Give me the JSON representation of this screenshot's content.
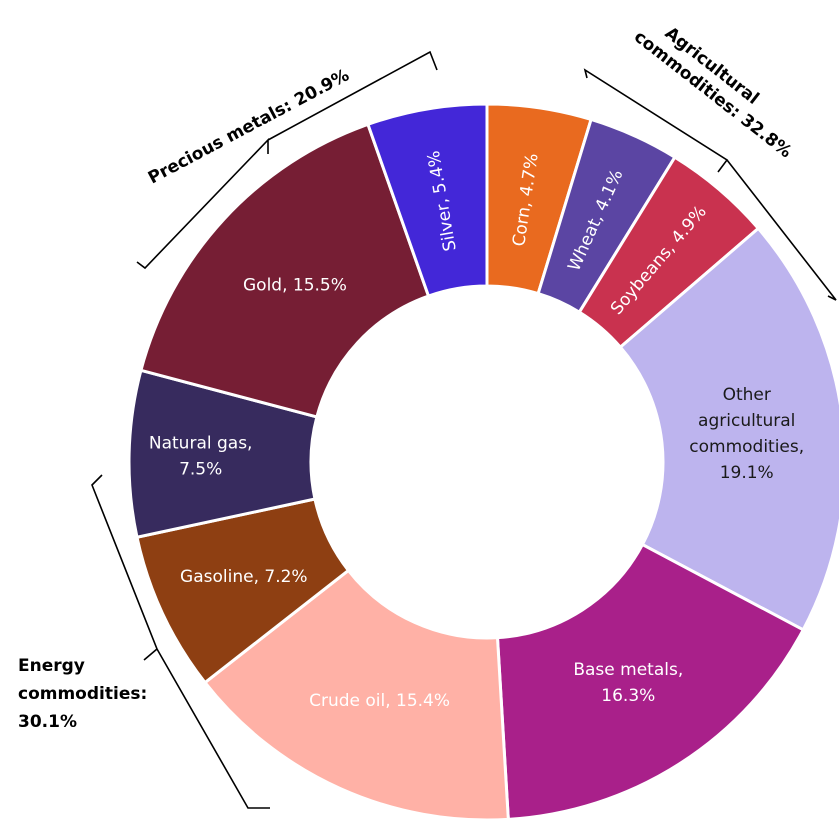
{
  "chart_data": {
    "type": "pie",
    "variant": "donut",
    "slices": [
      {
        "label": "Corn, 4.7%",
        "category": "Corn",
        "value": 4.7,
        "color": "#E96A1F"
      },
      {
        "label": "Wheat, 4.1%",
        "category": "Wheat",
        "value": 4.1,
        "color": "#5B45A3"
      },
      {
        "label": "Soybeans, 4.9%",
        "category": "Soybeans",
        "value": 4.9,
        "color": "#C9324F"
      },
      {
        "label": "Other agricultural commodities, 19.1%",
        "lines": [
          "Other",
          "agricultural",
          "commodities,",
          "19.1%"
        ],
        "category": "Other agricultural commodities",
        "value": 19.1,
        "color": "#BDB4EE"
      },
      {
        "label": "Base metals, 16.3%",
        "lines": [
          "Base metals,",
          "16.3%"
        ],
        "category": "Base metals",
        "value": 16.3,
        "color": "#A9208A"
      },
      {
        "label": "Crude oil, 15.4%",
        "category": "Crude oil",
        "value": 15.4,
        "color": "#FFB1A6"
      },
      {
        "label": "Gasoline, 7.2%",
        "category": "Gasoline",
        "value": 7.2,
        "color": "#8E3F12"
      },
      {
        "label": "Natural gas, 7.5%",
        "lines": [
          "Natural gas,",
          "7.5%"
        ],
        "category": "Natural gas",
        "value": 7.5,
        "color": "#372B5E"
      },
      {
        "label": "Gold, 15.5%",
        "category": "Gold",
        "value": 15.5,
        "color": "#761E34"
      },
      {
        "label": "Silver, 5.4%",
        "category": "Silver",
        "value": 5.4,
        "color": "#4327D8"
      }
    ],
    "groups": [
      {
        "label": "Agricultural commodities: 32.8%",
        "lines": [
          "Agricultural",
          "commodities: 32.8%"
        ],
        "value": 32.8,
        "members": [
          "Corn",
          "Wheat",
          "Soybeans",
          "Other agricultural commodities"
        ]
      },
      {
        "label": "Precious metals: 20.9%",
        "lines": [
          "Precious metals: 20.9%"
        ],
        "value": 20.9,
        "members": [
          "Gold",
          "Silver"
        ]
      },
      {
        "label": "Energy commodities: 30.1%",
        "lines": [
          "Energy",
          "commodities:",
          "30.1%"
        ],
        "value": 30.1,
        "members": [
          "Crude oil",
          "Gasoline",
          "Natural gas"
        ]
      }
    ],
    "title": "",
    "legend": "none"
  }
}
